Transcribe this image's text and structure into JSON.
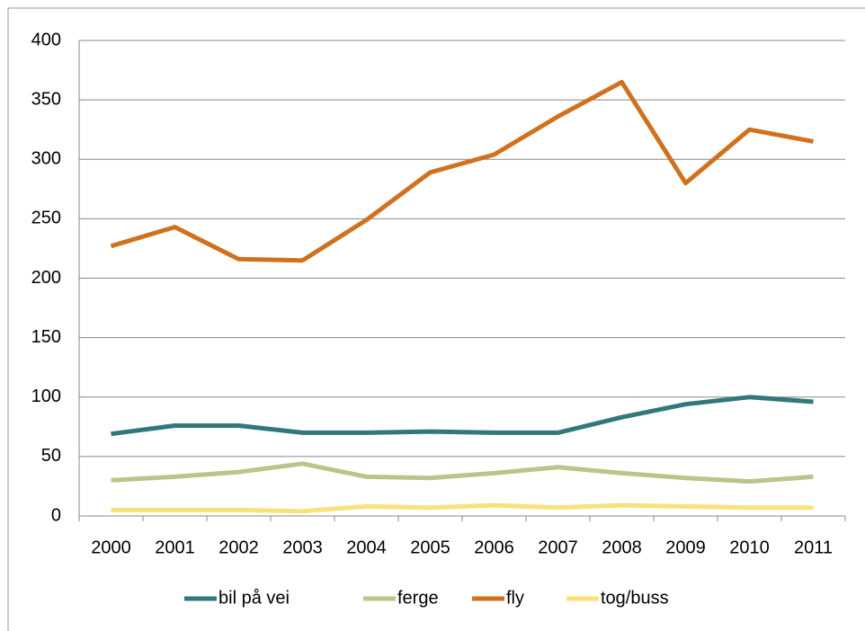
{
  "chart_data": {
    "type": "line",
    "categories": [
      "2000",
      "2001",
      "2002",
      "2003",
      "2004",
      "2005",
      "2006",
      "2007",
      "2008",
      "2009",
      "2010",
      "2011"
    ],
    "series": [
      {
        "name": "bil på vei",
        "color": "#31787a",
        "values": [
          69,
          76,
          76,
          70,
          70,
          71,
          70,
          70,
          83,
          94,
          100,
          96
        ]
      },
      {
        "name": "ferge",
        "color": "#bcc48b",
        "values": [
          30,
          33,
          37,
          44,
          33,
          32,
          36,
          41,
          36,
          32,
          29,
          33
        ]
      },
      {
        "name": "fly",
        "color": "#d0711f",
        "values": [
          227,
          243,
          216,
          215,
          249,
          289,
          304,
          336,
          365,
          280,
          325,
          315
        ]
      },
      {
        "name": "tog/buss",
        "color": "#f8e27a",
        "values": [
          5,
          5,
          5,
          4,
          8,
          7,
          9,
          7,
          9,
          8,
          7,
          7
        ]
      }
    ],
    "ylim": [
      0,
      400
    ],
    "yticks": [
      0,
      50,
      100,
      150,
      200,
      250,
      300,
      350,
      400
    ],
    "grid": true,
    "legend": "bottom"
  }
}
